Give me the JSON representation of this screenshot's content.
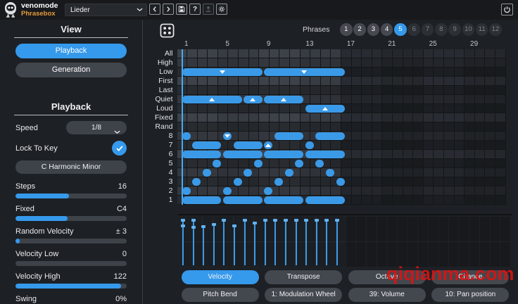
{
  "header": {
    "brand": "venomode",
    "product": "Phrasebox",
    "preset_value": "Lieder",
    "nav_buttons": [
      {
        "name": "prev-preset-button",
        "icon": "chevron-left-icon",
        "disabled": false
      },
      {
        "name": "next-preset-button",
        "icon": "chevron-right-icon",
        "disabled": false
      },
      {
        "name": "save-preset-button",
        "icon": "save-icon",
        "disabled": false
      },
      {
        "name": "help-button",
        "icon": "help-icon",
        "disabled": false
      },
      {
        "name": "export-button",
        "icon": "upload-icon",
        "disabled": true
      },
      {
        "name": "settings-button",
        "icon": "gear-icon",
        "disabled": false
      }
    ],
    "power_icon": "power-icon"
  },
  "sidebar": {
    "view": {
      "title": "View",
      "buttons": [
        {
          "label": "Playback",
          "selected": true
        },
        {
          "label": "Generation",
          "selected": false
        }
      ]
    },
    "playback": {
      "title": "Playback",
      "speed": {
        "label": "Speed",
        "value": "1/8"
      },
      "lock_to_key": {
        "label": "Lock To Key",
        "checked": true
      },
      "key_value": "C Harmonic Minor",
      "sliders": [
        {
          "label": "Steps",
          "value": "16",
          "fill": 0.48
        },
        {
          "label": "Fixed",
          "value": "C4",
          "fill": 0.47
        },
        {
          "label": "Random Velocity",
          "value": "± 3",
          "fill": 0.04
        },
        {
          "label": "Velocity Low",
          "value": "0",
          "fill": 0.0
        },
        {
          "label": "Velocity High",
          "value": "122",
          "fill": 0.95
        },
        {
          "label": "Swing",
          "value": "0%",
          "fill": 0.0
        }
      ]
    }
  },
  "main": {
    "randomize_icon": "dice-icon",
    "phrases": {
      "label": "Phrases",
      "total": 12,
      "selected": 5,
      "filled": [
        1,
        2,
        3,
        4,
        5
      ]
    },
    "grid": {
      "column_numbers": [
        1,
        5,
        9,
        13,
        17,
        21,
        25,
        29
      ],
      "row_labels": [
        "All",
        "High",
        "Low",
        "First",
        "Last",
        "Quiet",
        "Loud",
        "Fixed",
        "Rand",
        "8",
        "7",
        "6",
        "5",
        "4",
        "3",
        "2",
        "1"
      ],
      "steps_active": 16,
      "steps_total": 32,
      "playhead_step": 1,
      "notes": [
        {
          "row": "Low",
          "start": 1,
          "len": 8,
          "marker": "down"
        },
        {
          "row": "Low",
          "start": 9,
          "len": 8,
          "marker": "down"
        },
        {
          "row": "Quiet",
          "start": 1,
          "len": 6,
          "marker": "up"
        },
        {
          "row": "Quiet",
          "start": 7,
          "len": 2,
          "marker": "up"
        },
        {
          "row": "Quiet",
          "start": 9,
          "len": 4,
          "marker": "up"
        },
        {
          "row": "Loud",
          "start": 13,
          "len": 4,
          "marker": "up"
        },
        {
          "row": "8",
          "start": 1,
          "len": 1
        },
        {
          "row": "8",
          "start": 5,
          "len": 1,
          "marker": "down"
        },
        {
          "row": "8",
          "start": 10,
          "len": 3
        },
        {
          "row": "8",
          "start": 14,
          "len": 3
        },
        {
          "row": "7",
          "start": 2,
          "len": 3
        },
        {
          "row": "7",
          "start": 6,
          "len": 3
        },
        {
          "row": "7",
          "start": 9,
          "len": 1,
          "marker": "up"
        },
        {
          "row": "7",
          "start": 13,
          "len": 1
        },
        {
          "row": "6",
          "start": 1,
          "len": 4
        },
        {
          "row": "6",
          "start": 5,
          "len": 4
        },
        {
          "row": "6",
          "start": 9,
          "len": 4
        },
        {
          "row": "6",
          "start": 13,
          "len": 4
        },
        {
          "row": "5",
          "start": 4,
          "len": 1
        },
        {
          "row": "5",
          "start": 8,
          "len": 1
        },
        {
          "row": "5",
          "start": 12,
          "len": 1
        },
        {
          "row": "5",
          "start": 14,
          "len": 1
        },
        {
          "row": "4",
          "start": 3,
          "len": 1
        },
        {
          "row": "4",
          "start": 7,
          "len": 1
        },
        {
          "row": "4",
          "start": 11,
          "len": 1
        },
        {
          "row": "4",
          "start": 15,
          "len": 1
        },
        {
          "row": "3",
          "start": 2,
          "len": 1
        },
        {
          "row": "3",
          "start": 6,
          "len": 1
        },
        {
          "row": "3",
          "start": 10,
          "len": 1
        },
        {
          "row": "3",
          "start": 16,
          "len": 1
        },
        {
          "row": "2",
          "start": 1,
          "len": 1
        },
        {
          "row": "2",
          "start": 5,
          "len": 1
        },
        {
          "row": "2",
          "start": 9,
          "len": 1
        },
        {
          "row": "1",
          "start": 1,
          "len": 4
        },
        {
          "row": "1",
          "start": 5,
          "len": 4
        },
        {
          "row": "1",
          "start": 9,
          "len": 4
        },
        {
          "row": "1",
          "start": 13,
          "len": 4
        }
      ]
    },
    "velocity_lane": {
      "velocities": [
        123,
        123,
        105,
        110,
        122,
        107,
        122,
        114,
        123,
        123,
        123,
        123,
        123,
        123,
        123,
        123
      ],
      "secondary_handles": [
        {
          "step": 1,
          "value": 110
        },
        {
          "step": 2,
          "value": 107
        }
      ]
    },
    "lane_buttons": {
      "row1": [
        {
          "label": "Velocity",
          "selected": true
        },
        {
          "label": "Transpose",
          "selected": false
        },
        {
          "label": "Octave",
          "selected": false
        },
        {
          "label": "Chance",
          "selected": false
        }
      ],
      "row2": [
        {
          "label": "Pitch Bend",
          "selected": false
        },
        {
          "label": "1: Modulation Wheel",
          "selected": false
        },
        {
          "label": "39: Volume",
          "selected": false
        },
        {
          "label": "10: Pan position",
          "selected": false
        }
      ]
    }
  },
  "watermark": "qiqianma.com",
  "colors": {
    "accent": "#3599EC",
    "note_blue": "#3B9AE7",
    "brand_orange": "#E89A3C",
    "watermark_red": "#DE1212"
  }
}
